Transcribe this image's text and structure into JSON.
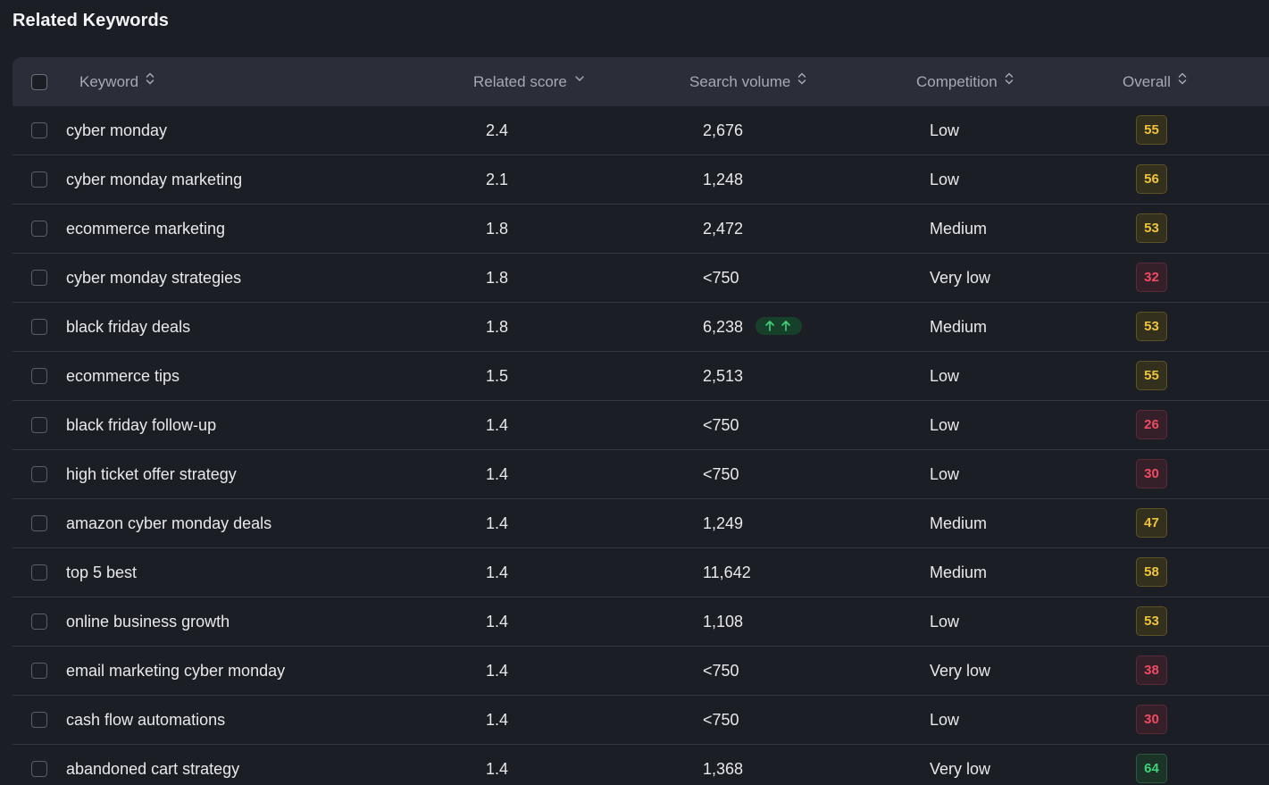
{
  "title": "Related Keywords",
  "columns": {
    "keyword": "Keyword",
    "related_score": "Related score",
    "search_volume": "Search volume",
    "competition": "Competition",
    "overall": "Overall"
  },
  "colors": {
    "yellow": "#f0c43a",
    "red": "#ef4b62",
    "green": "#3fd37a"
  },
  "rows": [
    {
      "keyword": "cyber monday",
      "score": "2.4",
      "volume": "2,676",
      "competition": "Low",
      "overall": "55",
      "color": "yellow",
      "trend": false
    },
    {
      "keyword": "cyber monday marketing",
      "score": "2.1",
      "volume": "1,248",
      "competition": "Low",
      "overall": "56",
      "color": "yellow",
      "trend": false
    },
    {
      "keyword": "ecommerce marketing",
      "score": "1.8",
      "volume": "2,472",
      "competition": "Medium",
      "overall": "53",
      "color": "yellow",
      "trend": false
    },
    {
      "keyword": "cyber monday strategies",
      "score": "1.8",
      "volume": "<750",
      "competition": "Very low",
      "overall": "32",
      "color": "red",
      "trend": false
    },
    {
      "keyword": "black friday deals",
      "score": "1.8",
      "volume": "6,238",
      "competition": "Medium",
      "overall": "53",
      "color": "yellow",
      "trend": true
    },
    {
      "keyword": "ecommerce tips",
      "score": "1.5",
      "volume": "2,513",
      "competition": "Low",
      "overall": "55",
      "color": "yellow",
      "trend": false
    },
    {
      "keyword": "black friday follow-up",
      "score": "1.4",
      "volume": "<750",
      "competition": "Low",
      "overall": "26",
      "color": "red",
      "trend": false
    },
    {
      "keyword": "high ticket offer strategy",
      "score": "1.4",
      "volume": "<750",
      "competition": "Low",
      "overall": "30",
      "color": "red",
      "trend": false
    },
    {
      "keyword": "amazon cyber monday deals",
      "score": "1.4",
      "volume": "1,249",
      "competition": "Medium",
      "overall": "47",
      "color": "yellow",
      "trend": false
    },
    {
      "keyword": "top 5 best",
      "score": "1.4",
      "volume": "11,642",
      "competition": "Medium",
      "overall": "58",
      "color": "yellow",
      "trend": false
    },
    {
      "keyword": "online business growth",
      "score": "1.4",
      "volume": "1,108",
      "competition": "Low",
      "overall": "53",
      "color": "yellow",
      "trend": false
    },
    {
      "keyword": "email marketing cyber monday",
      "score": "1.4",
      "volume": "<750",
      "competition": "Very low",
      "overall": "38",
      "color": "red",
      "trend": false
    },
    {
      "keyword": "cash flow automations",
      "score": "1.4",
      "volume": "<750",
      "competition": "Low",
      "overall": "30",
      "color": "red",
      "trend": false
    },
    {
      "keyword": "abandoned cart strategy",
      "score": "1.4",
      "volume": "1,368",
      "competition": "Very low",
      "overall": "64",
      "color": "green",
      "trend": false
    }
  ]
}
